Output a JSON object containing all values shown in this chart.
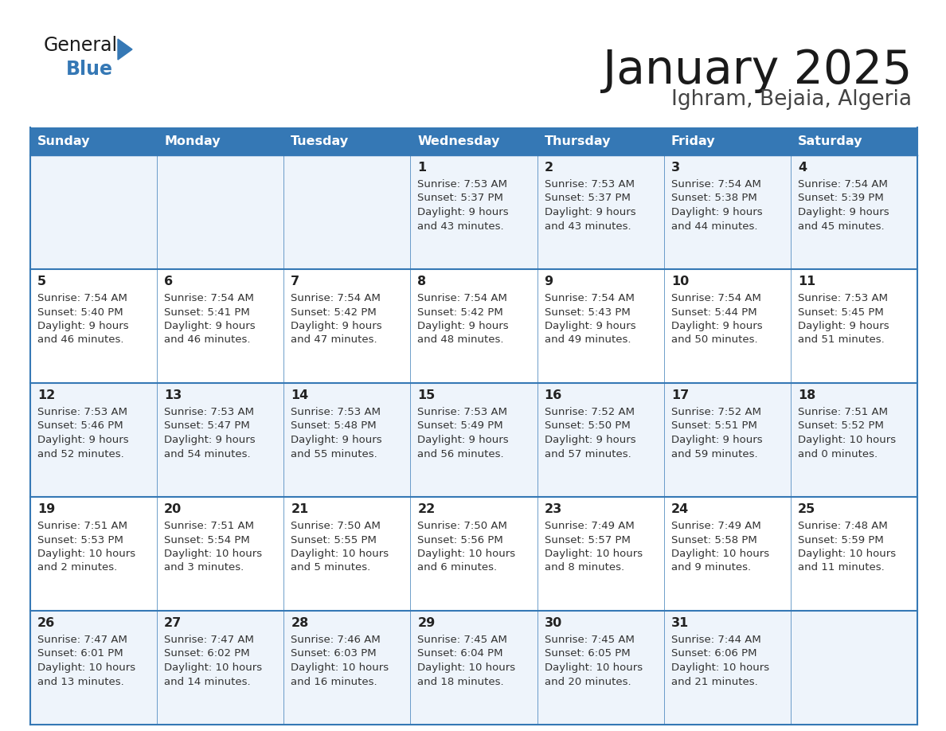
{
  "title": "January 2025",
  "subtitle": "Ighram, Bejaia, Algeria",
  "days_of_week": [
    "Sunday",
    "Monday",
    "Tuesday",
    "Wednesday",
    "Thursday",
    "Friday",
    "Saturday"
  ],
  "header_bg": "#3578b5",
  "header_text": "#ffffff",
  "row_bg_odd": "#eef4fb",
  "row_bg_even": "#ffffff",
  "grid_line_color": "#3578b5",
  "separator_color": "#3578b5",
  "day_num_color": "#222222",
  "text_color": "#333333",
  "title_color": "#1a1a1a",
  "subtitle_color": "#444444",
  "general_color": "#1a1a1a",
  "blue_color": "#3578b5",
  "weeks": [
    [
      {
        "day": null,
        "sunrise": null,
        "sunset": null,
        "daylight": null
      },
      {
        "day": null,
        "sunrise": null,
        "sunset": null,
        "daylight": null
      },
      {
        "day": null,
        "sunrise": null,
        "sunset": null,
        "daylight": null
      },
      {
        "day": 1,
        "sunrise": "7:53 AM",
        "sunset": "5:37 PM",
        "daylight_line1": "Daylight: 9 hours",
        "daylight_line2": "and 43 minutes."
      },
      {
        "day": 2,
        "sunrise": "7:53 AM",
        "sunset": "5:37 PM",
        "daylight_line1": "Daylight: 9 hours",
        "daylight_line2": "and 43 minutes."
      },
      {
        "day": 3,
        "sunrise": "7:54 AM",
        "sunset": "5:38 PM",
        "daylight_line1": "Daylight: 9 hours",
        "daylight_line2": "and 44 minutes."
      },
      {
        "day": 4,
        "sunrise": "7:54 AM",
        "sunset": "5:39 PM",
        "daylight_line1": "Daylight: 9 hours",
        "daylight_line2": "and 45 minutes."
      }
    ],
    [
      {
        "day": 5,
        "sunrise": "7:54 AM",
        "sunset": "5:40 PM",
        "daylight_line1": "Daylight: 9 hours",
        "daylight_line2": "and 46 minutes."
      },
      {
        "day": 6,
        "sunrise": "7:54 AM",
        "sunset": "5:41 PM",
        "daylight_line1": "Daylight: 9 hours",
        "daylight_line2": "and 46 minutes."
      },
      {
        "day": 7,
        "sunrise": "7:54 AM",
        "sunset": "5:42 PM",
        "daylight_line1": "Daylight: 9 hours",
        "daylight_line2": "and 47 minutes."
      },
      {
        "day": 8,
        "sunrise": "7:54 AM",
        "sunset": "5:42 PM",
        "daylight_line1": "Daylight: 9 hours",
        "daylight_line2": "and 48 minutes."
      },
      {
        "day": 9,
        "sunrise": "7:54 AM",
        "sunset": "5:43 PM",
        "daylight_line1": "Daylight: 9 hours",
        "daylight_line2": "and 49 minutes."
      },
      {
        "day": 10,
        "sunrise": "7:54 AM",
        "sunset": "5:44 PM",
        "daylight_line1": "Daylight: 9 hours",
        "daylight_line2": "and 50 minutes."
      },
      {
        "day": 11,
        "sunrise": "7:53 AM",
        "sunset": "5:45 PM",
        "daylight_line1": "Daylight: 9 hours",
        "daylight_line2": "and 51 minutes."
      }
    ],
    [
      {
        "day": 12,
        "sunrise": "7:53 AM",
        "sunset": "5:46 PM",
        "daylight_line1": "Daylight: 9 hours",
        "daylight_line2": "and 52 minutes."
      },
      {
        "day": 13,
        "sunrise": "7:53 AM",
        "sunset": "5:47 PM",
        "daylight_line1": "Daylight: 9 hours",
        "daylight_line2": "and 54 minutes."
      },
      {
        "day": 14,
        "sunrise": "7:53 AM",
        "sunset": "5:48 PM",
        "daylight_line1": "Daylight: 9 hours",
        "daylight_line2": "and 55 minutes."
      },
      {
        "day": 15,
        "sunrise": "7:53 AM",
        "sunset": "5:49 PM",
        "daylight_line1": "Daylight: 9 hours",
        "daylight_line2": "and 56 minutes."
      },
      {
        "day": 16,
        "sunrise": "7:52 AM",
        "sunset": "5:50 PM",
        "daylight_line1": "Daylight: 9 hours",
        "daylight_line2": "and 57 minutes."
      },
      {
        "day": 17,
        "sunrise": "7:52 AM",
        "sunset": "5:51 PM",
        "daylight_line1": "Daylight: 9 hours",
        "daylight_line2": "and 59 minutes."
      },
      {
        "day": 18,
        "sunrise": "7:51 AM",
        "sunset": "5:52 PM",
        "daylight_line1": "Daylight: 10 hours",
        "daylight_line2": "and 0 minutes."
      }
    ],
    [
      {
        "day": 19,
        "sunrise": "7:51 AM",
        "sunset": "5:53 PM",
        "daylight_line1": "Daylight: 10 hours",
        "daylight_line2": "and 2 minutes."
      },
      {
        "day": 20,
        "sunrise": "7:51 AM",
        "sunset": "5:54 PM",
        "daylight_line1": "Daylight: 10 hours",
        "daylight_line2": "and 3 minutes."
      },
      {
        "day": 21,
        "sunrise": "7:50 AM",
        "sunset": "5:55 PM",
        "daylight_line1": "Daylight: 10 hours",
        "daylight_line2": "and 5 minutes."
      },
      {
        "day": 22,
        "sunrise": "7:50 AM",
        "sunset": "5:56 PM",
        "daylight_line1": "Daylight: 10 hours",
        "daylight_line2": "and 6 minutes."
      },
      {
        "day": 23,
        "sunrise": "7:49 AM",
        "sunset": "5:57 PM",
        "daylight_line1": "Daylight: 10 hours",
        "daylight_line2": "and 8 minutes."
      },
      {
        "day": 24,
        "sunrise": "7:49 AM",
        "sunset": "5:58 PM",
        "daylight_line1": "Daylight: 10 hours",
        "daylight_line2": "and 9 minutes."
      },
      {
        "day": 25,
        "sunrise": "7:48 AM",
        "sunset": "5:59 PM",
        "daylight_line1": "Daylight: 10 hours",
        "daylight_line2": "and 11 minutes."
      }
    ],
    [
      {
        "day": 26,
        "sunrise": "7:47 AM",
        "sunset": "6:01 PM",
        "daylight_line1": "Daylight: 10 hours",
        "daylight_line2": "and 13 minutes."
      },
      {
        "day": 27,
        "sunrise": "7:47 AM",
        "sunset": "6:02 PM",
        "daylight_line1": "Daylight: 10 hours",
        "daylight_line2": "and 14 minutes."
      },
      {
        "day": 28,
        "sunrise": "7:46 AM",
        "sunset": "6:03 PM",
        "daylight_line1": "Daylight: 10 hours",
        "daylight_line2": "and 16 minutes."
      },
      {
        "day": 29,
        "sunrise": "7:45 AM",
        "sunset": "6:04 PM",
        "daylight_line1": "Daylight: 10 hours",
        "daylight_line2": "and 18 minutes."
      },
      {
        "day": 30,
        "sunrise": "7:45 AM",
        "sunset": "6:05 PM",
        "daylight_line1": "Daylight: 10 hours",
        "daylight_line2": "and 20 minutes."
      },
      {
        "day": 31,
        "sunrise": "7:44 AM",
        "sunset": "6:06 PM",
        "daylight_line1": "Daylight: 10 hours",
        "daylight_line2": "and 21 minutes."
      },
      {
        "day": null,
        "sunrise": null,
        "sunset": null,
        "daylight_line1": null,
        "daylight_line2": null
      }
    ]
  ]
}
